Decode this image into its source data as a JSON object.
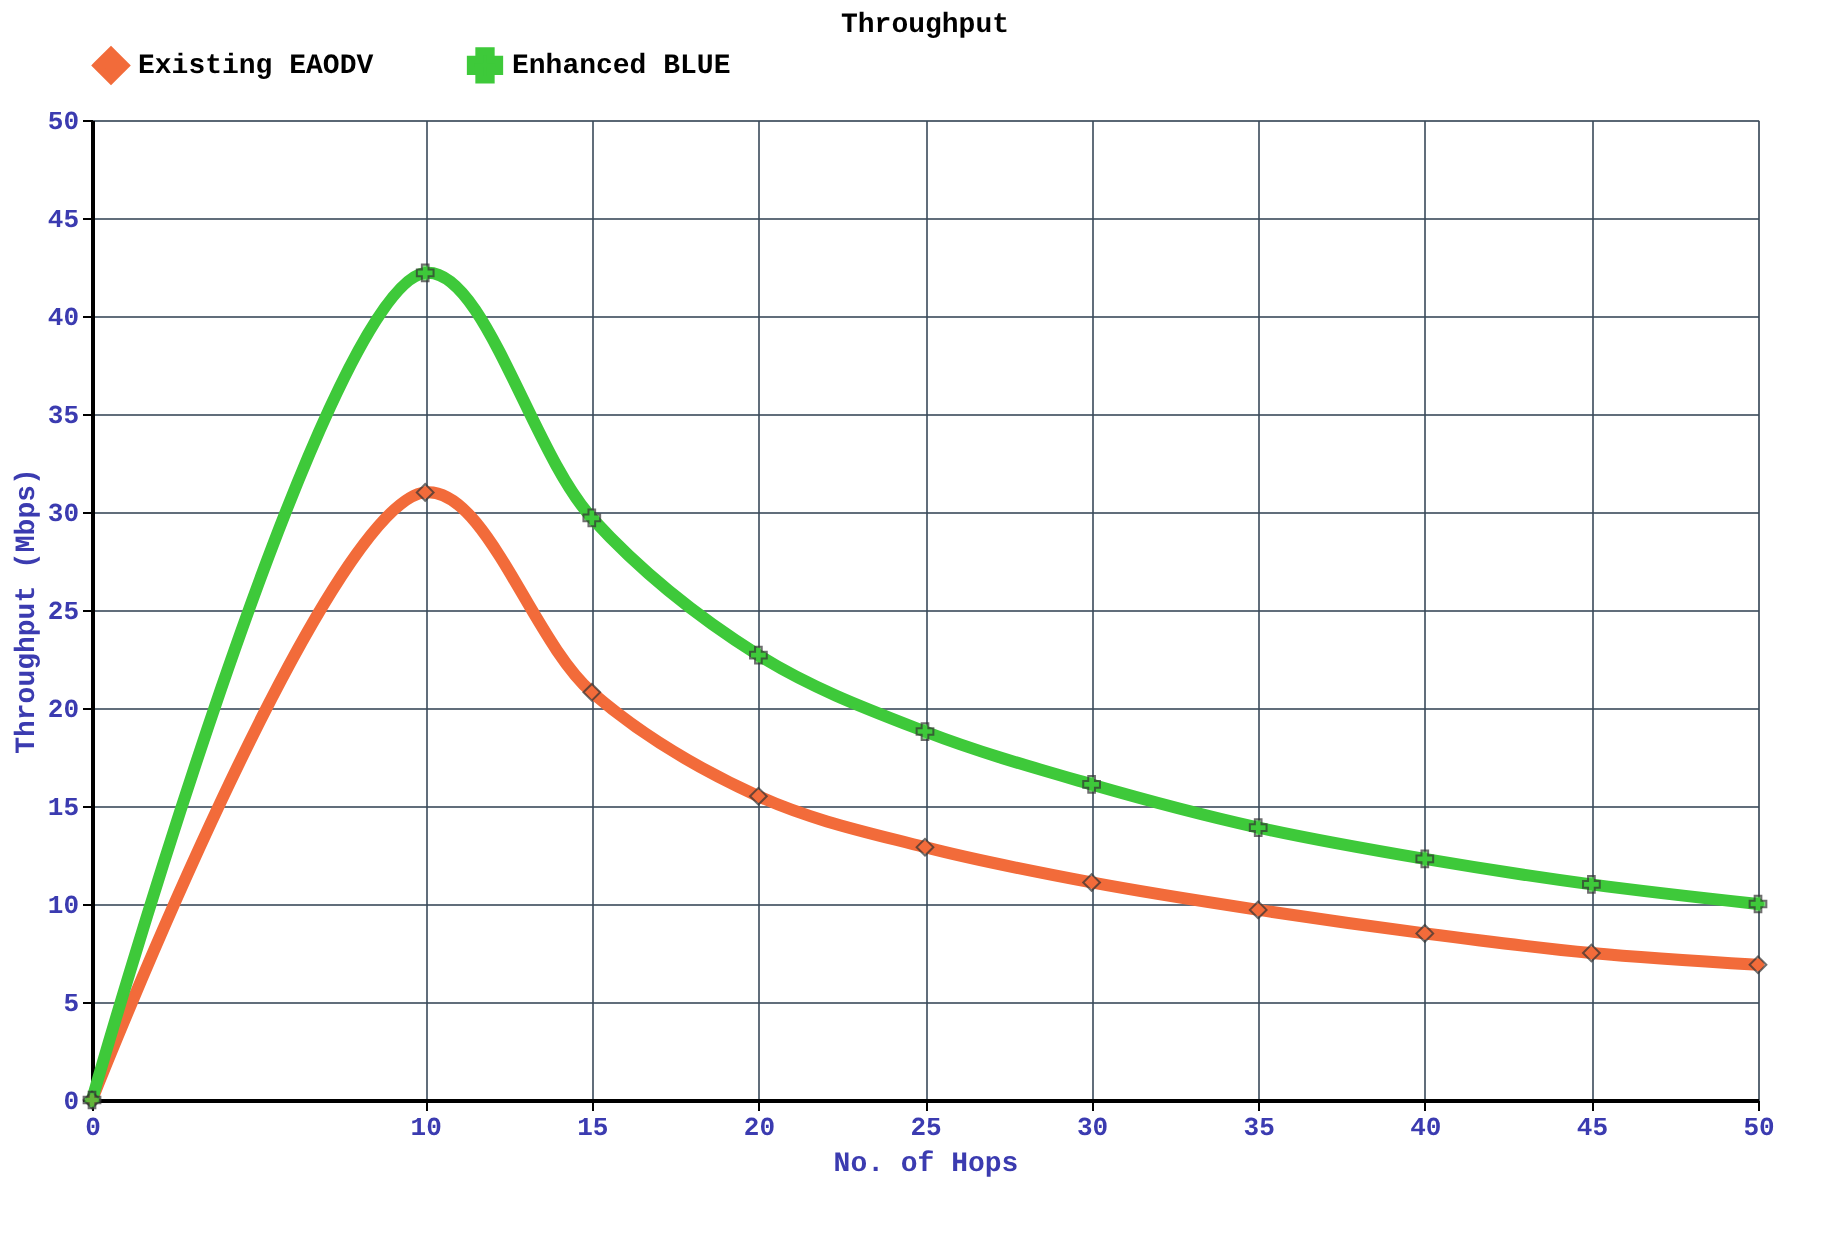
{
  "chart_data": {
    "type": "line",
    "title": "Throughput",
    "xlabel": "No. of Hops",
    "ylabel": "Throughput (Mbps)",
    "x": [
      0,
      10,
      15,
      20,
      25,
      30,
      35,
      40,
      45,
      50
    ],
    "series": [
      {
        "name": "Existing EAODV",
        "color": "#f26b3a",
        "marker": "diamond",
        "values": [
          0,
          31,
          20.8,
          15.5,
          12.9,
          11.1,
          9.7,
          8.5,
          7.5,
          6.9
        ]
      },
      {
        "name": "Enhanced BLUE",
        "color": "#3ec93a",
        "marker": "cross",
        "values": [
          0,
          42.2,
          29.7,
          22.7,
          18.8,
          16.1,
          13.9,
          12.3,
          11.0,
          10.0
        ]
      }
    ],
    "xlim": [
      0,
      50
    ],
    "xticks": [
      0,
      10,
      15,
      20,
      25,
      30,
      35,
      40,
      45,
      50
    ],
    "ylim": [
      0,
      50
    ],
    "yticks": [
      0,
      5,
      10,
      15,
      20,
      25,
      30,
      35,
      40,
      45,
      50
    ],
    "grid": true,
    "legend": "top left",
    "line_style": "solid"
  }
}
